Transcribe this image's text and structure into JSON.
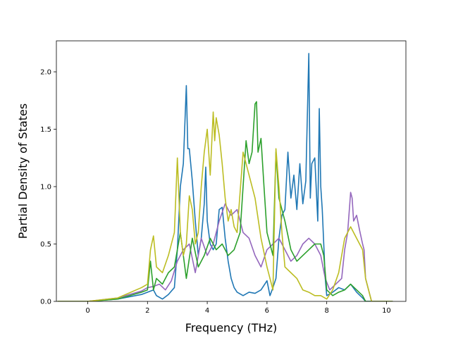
{
  "chart_data": {
    "type": "line",
    "title": "",
    "xlabel": "Frequency (THz)",
    "ylabel": "Partial Density of States",
    "xlim": [
      -1.05,
      10.65
    ],
    "ylim": [
      0.0,
      2.27
    ],
    "xticks": [
      0,
      2,
      4,
      6,
      8,
      10
    ],
    "yticks": [
      0.0,
      0.5,
      1.0,
      1.5,
      2.0
    ],
    "xtick_labels": [
      "0",
      "2",
      "4",
      "6",
      "8",
      "10"
    ],
    "ytick_labels": [
      "0.0",
      "0.5",
      "1.0",
      "1.5",
      "2.0"
    ],
    "grid": false,
    "legend": "none",
    "series": [
      {
        "color": "#1f77b4",
        "x": [
          -1.0,
          0.0,
          1.0,
          1.8,
          2.0,
          2.2,
          2.3,
          2.5,
          2.7,
          2.9,
          3.0,
          3.1,
          3.2,
          3.3,
          3.35,
          3.4,
          3.5,
          3.6,
          3.7,
          3.8,
          3.9,
          3.95,
          4.0,
          4.1,
          4.2,
          4.3,
          4.4,
          4.5,
          4.6,
          4.7,
          4.8,
          4.9,
          5.0,
          5.2,
          5.4,
          5.6,
          5.8,
          6.0,
          6.1,
          6.2,
          6.3,
          6.4,
          6.5,
          6.6,
          6.7,
          6.8,
          6.9,
          7.0,
          7.1,
          7.2,
          7.3,
          7.4,
          7.45,
          7.5,
          7.6,
          7.7,
          7.75,
          7.8,
          7.85,
          7.9,
          7.95,
          8.0,
          8.2,
          8.4,
          8.6,
          8.8,
          9.0,
          9.2,
          9.3,
          9.5,
          10.0,
          10.2
        ],
        "y": [
          0.0,
          0.0,
          0.02,
          0.06,
          0.08,
          0.1,
          0.05,
          0.02,
          0.06,
          0.12,
          0.45,
          1.0,
          1.2,
          1.88,
          1.33,
          1.33,
          1.05,
          0.7,
          0.4,
          0.55,
          0.85,
          1.17,
          0.7,
          0.5,
          0.45,
          0.5,
          0.8,
          0.82,
          0.55,
          0.35,
          0.2,
          0.12,
          0.08,
          0.05,
          0.08,
          0.07,
          0.1,
          0.18,
          0.05,
          0.12,
          0.2,
          0.55,
          0.75,
          0.8,
          1.3,
          0.9,
          1.1,
          0.8,
          1.2,
          0.85,
          1.05,
          2.16,
          0.9,
          1.2,
          1.25,
          0.7,
          1.68,
          1.0,
          0.8,
          0.5,
          0.2,
          0.05,
          0.08,
          0.12,
          0.1,
          0.15,
          0.08,
          0.03,
          0.0,
          0.0,
          0.0,
          0.0
        ]
      },
      {
        "color": "#9467bd",
        "x": [
          -1.0,
          0.0,
          1.0,
          1.8,
          2.0,
          2.2,
          2.4,
          2.6,
          2.8,
          3.0,
          3.2,
          3.4,
          3.6,
          3.8,
          4.0,
          4.2,
          4.4,
          4.6,
          4.8,
          5.0,
          5.2,
          5.4,
          5.6,
          5.8,
          6.0,
          6.2,
          6.4,
          6.6,
          6.8,
          7.0,
          7.2,
          7.4,
          7.6,
          7.8,
          7.95,
          8.1,
          8.3,
          8.5,
          8.6,
          8.7,
          8.8,
          8.85,
          8.9,
          9.0,
          9.1,
          9.2,
          9.25,
          9.3,
          9.5,
          10.0,
          10.2
        ],
        "y": [
          0.0,
          0.0,
          0.03,
          0.09,
          0.12,
          0.13,
          0.15,
          0.1,
          0.18,
          0.35,
          0.45,
          0.5,
          0.25,
          0.55,
          0.4,
          0.5,
          0.7,
          0.85,
          0.75,
          0.8,
          0.6,
          0.55,
          0.4,
          0.3,
          0.45,
          0.5,
          0.55,
          0.45,
          0.35,
          0.4,
          0.5,
          0.55,
          0.5,
          0.4,
          0.2,
          0.1,
          0.15,
          0.2,
          0.45,
          0.6,
          0.95,
          0.9,
          0.7,
          0.75,
          0.62,
          0.5,
          0.45,
          0.2,
          0.0,
          0.0,
          0.0
        ]
      },
      {
        "color": "#2ca02c",
        "x": [
          -1.0,
          0.0,
          1.0,
          1.8,
          2.0,
          2.1,
          2.2,
          2.3,
          2.5,
          2.7,
          2.9,
          3.1,
          3.3,
          3.5,
          3.7,
          3.9,
          4.1,
          4.3,
          4.5,
          4.7,
          4.9,
          5.1,
          5.3,
          5.4,
          5.5,
          5.6,
          5.65,
          5.7,
          5.8,
          5.9,
          6.0,
          6.1,
          6.2,
          6.3,
          6.4,
          6.6,
          6.8,
          7.0,
          7.2,
          7.4,
          7.6,
          7.8,
          7.9,
          8.0,
          8.2,
          8.4,
          8.6,
          8.8,
          9.0,
          9.2,
          9.3,
          9.5,
          10.0,
          10.2
        ],
        "y": [
          0.0,
          0.0,
          0.02,
          0.08,
          0.1,
          0.35,
          0.1,
          0.2,
          0.15,
          0.25,
          0.3,
          0.6,
          0.2,
          0.55,
          0.3,
          0.4,
          0.55,
          0.45,
          0.5,
          0.4,
          0.45,
          0.6,
          1.4,
          1.2,
          1.3,
          1.72,
          1.74,
          1.3,
          1.42,
          1.0,
          0.6,
          0.5,
          0.4,
          1.3,
          0.9,
          0.7,
          0.45,
          0.35,
          0.4,
          0.45,
          0.5,
          0.5,
          0.4,
          0.1,
          0.05,
          0.08,
          0.1,
          0.15,
          0.1,
          0.05,
          0.0,
          0.0,
          0.0,
          0.0
        ]
      },
      {
        "color": "#bcbd22",
        "x": [
          -1.0,
          0.0,
          1.0,
          1.8,
          2.0,
          2.1,
          2.2,
          2.3,
          2.5,
          2.7,
          2.9,
          3.0,
          3.1,
          3.2,
          3.3,
          3.4,
          3.5,
          3.6,
          3.7,
          3.8,
          3.9,
          4.0,
          4.1,
          4.2,
          4.25,
          4.3,
          4.4,
          4.5,
          4.6,
          4.7,
          4.8,
          4.9,
          5.0,
          5.2,
          5.4,
          5.6,
          5.8,
          6.0,
          6.1,
          6.2,
          6.3,
          6.4,
          6.5,
          6.6,
          6.8,
          7.0,
          7.2,
          7.4,
          7.6,
          7.8,
          8.0,
          8.2,
          8.4,
          8.6,
          8.8,
          8.9,
          9.0,
          9.1,
          9.2,
          9.3,
          9.5,
          10.0,
          10.2
        ],
        "y": [
          0.0,
          0.0,
          0.03,
          0.12,
          0.15,
          0.45,
          0.57,
          0.3,
          0.25,
          0.4,
          0.6,
          1.25,
          0.6,
          0.4,
          0.5,
          0.92,
          0.8,
          0.5,
          0.6,
          1.0,
          1.3,
          1.5,
          1.1,
          1.65,
          1.4,
          1.6,
          1.45,
          1.2,
          0.9,
          0.7,
          0.8,
          0.65,
          0.6,
          1.3,
          1.1,
          0.9,
          0.55,
          0.3,
          0.2,
          0.1,
          1.33,
          1.0,
          0.6,
          0.3,
          0.25,
          0.2,
          0.1,
          0.08,
          0.05,
          0.05,
          0.02,
          0.1,
          0.25,
          0.55,
          0.65,
          0.6,
          0.55,
          0.5,
          0.45,
          0.2,
          0.0,
          0.0,
          0.0
        ]
      }
    ]
  }
}
